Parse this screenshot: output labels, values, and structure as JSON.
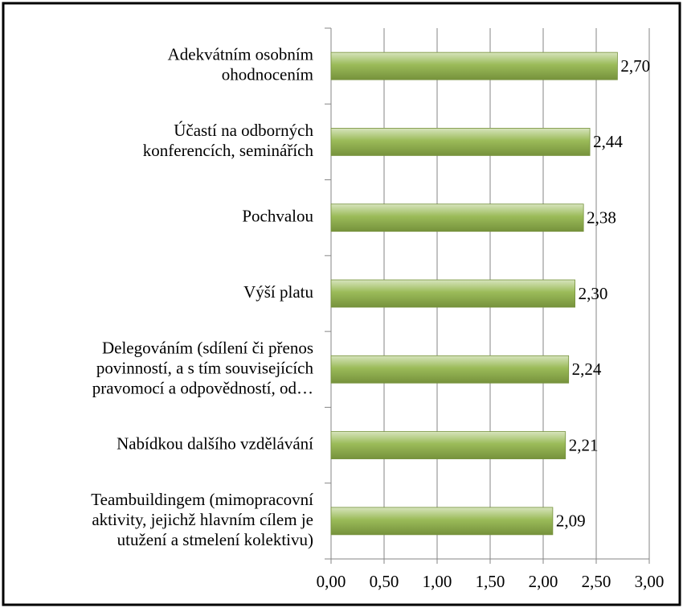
{
  "chart_data": {
    "type": "bar",
    "orientation": "horizontal",
    "categories": [
      "Adekvátním osobním\nohodnocením",
      "Účastí na odborných\nkonferencích, seminářích",
      "Pochvalou",
      "Výší platu",
      "Delegováním (sdílení či přenos\npovinností, a s tím souvisejících\npravomocí a odpovědností, od…",
      "Nabídkou dalšího vzdělávání",
      "Teambuildingem (mimopracovní\naktivity, jejichž hlavním cílem je\nutužení a stmelení kolektivu)"
    ],
    "values": [
      2.7,
      2.44,
      2.38,
      2.3,
      2.24,
      2.21,
      2.09
    ],
    "value_labels": [
      "2,70",
      "2,44",
      "2,38",
      "2,30",
      "2,24",
      "2,21",
      "2,09"
    ],
    "color": "#9bbb59",
    "xlim": [
      0,
      3
    ],
    "xticks": [
      {
        "value": 0,
        "label": "0,00"
      },
      {
        "value": 0.5,
        "label": "0,50"
      },
      {
        "value": 1,
        "label": "1,00"
      },
      {
        "value": 1.5,
        "label": "1,50"
      },
      {
        "value": 2,
        "label": "2,00"
      },
      {
        "value": 2.5,
        "label": "2,50"
      },
      {
        "value": 3,
        "label": "3,00"
      }
    ],
    "grid": true
  }
}
